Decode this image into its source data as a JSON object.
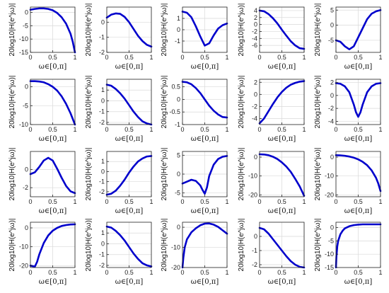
{
  "figure": {
    "line_color": "#0000cc",
    "grid_color": "#d9d9d9",
    "x_label": "ω∈[0,π]",
    "y_label": "20log10|H(e^jω)|"
  },
  "chart_data": [
    {
      "type": "line",
      "xlim": [
        0,
        1
      ],
      "ylim": [
        -15,
        2
      ],
      "yticks": [
        0,
        -5,
        -10,
        -15
      ],
      "xticks": [
        0,
        0.5,
        1
      ],
      "xticklabels": [
        "0",
        "0.5",
        "1"
      ],
      "grid": true,
      "x": [
        0,
        0.1,
        0.2,
        0.3,
        0.4,
        0.5,
        0.6,
        0.7,
        0.8,
        0.9,
        0.95,
        1
      ],
      "y": [
        1,
        1.3,
        1.5,
        1.5,
        1.3,
        0.8,
        -0.2,
        -1.8,
        -4.2,
        -8.0,
        -11.0,
        -15.0
      ]
    },
    {
      "type": "line",
      "xlim": [
        0,
        1
      ],
      "ylim": [
        -2,
        1
      ],
      "yticks": [
        0,
        -1,
        -2
      ],
      "xticks": [
        0,
        0.5,
        1
      ],
      "xticklabels": [
        "0",
        "0.5",
        "1"
      ],
      "grid": true,
      "x": [
        0,
        0.1,
        0.2,
        0.3,
        0.4,
        0.5,
        0.6,
        0.7,
        0.8,
        0.9,
        1
      ],
      "y": [
        0.3,
        0.5,
        0.58,
        0.55,
        0.35,
        0.0,
        -0.45,
        -0.9,
        -1.25,
        -1.5,
        -1.62
      ]
    },
    {
      "type": "line",
      "xlim": [
        0,
        1
      ],
      "ylim": [
        -2,
        2
      ],
      "yticks": [
        1,
        0,
        -1
      ],
      "xticks": [
        0,
        0.5,
        1
      ],
      "xticklabels": [
        "0",
        "0.5",
        "1"
      ],
      "grid": true,
      "x": [
        0,
        0.1,
        0.2,
        0.3,
        0.4,
        0.5,
        0.6,
        0.7,
        0.8,
        0.9,
        1
      ],
      "y": [
        1.6,
        1.5,
        1.1,
        0.3,
        -0.6,
        -1.4,
        -1.2,
        -0.5,
        0.1,
        0.4,
        0.55
      ]
    },
    {
      "type": "line",
      "xlim": [
        0,
        1
      ],
      "ylim": [
        -8,
        5
      ],
      "yticks": [
        4,
        2,
        0,
        -2,
        -4,
        -6
      ],
      "xticks": [
        0,
        0.5,
        1
      ],
      "xticklabels": [
        "0",
        "0.5",
        "1"
      ],
      "grid": true,
      "x": [
        0,
        0.1,
        0.2,
        0.3,
        0.4,
        0.5,
        0.6,
        0.7,
        0.8,
        0.9,
        1
      ],
      "y": [
        4,
        3.8,
        3,
        1.8,
        0.3,
        -1.5,
        -3.2,
        -4.8,
        -6.0,
        -6.8,
        -7.0
      ]
    },
    {
      "type": "line",
      "xlim": [
        0,
        1
      ],
      "ylim": [
        -9,
        6
      ],
      "yticks": [
        5,
        0,
        -5
      ],
      "xticks": [
        0,
        0.5,
        1
      ],
      "xticklabels": [
        "0",
        "0.5",
        "1"
      ],
      "grid": true,
      "x": [
        0,
        0.1,
        0.2,
        0.3,
        0.4,
        0.5,
        0.6,
        0.7,
        0.8,
        0.9,
        1
      ],
      "y": [
        -5,
        -5.5,
        -7,
        -8,
        -7,
        -4,
        -1,
        2,
        3.8,
        4.6,
        5
      ]
    },
    {
      "type": "line",
      "xlim": [
        0,
        1
      ],
      "ylim": [
        -10,
        2
      ],
      "yticks": [
        0,
        -5,
        -10
      ],
      "xticks": [
        0,
        0.5,
        1
      ],
      "xticklabels": [
        "0",
        "0.5",
        "1"
      ],
      "grid": true,
      "x": [
        0,
        0.1,
        0.2,
        0.3,
        0.4,
        0.5,
        0.6,
        0.7,
        0.8,
        0.9,
        0.95,
        1
      ],
      "y": [
        1.5,
        1.5,
        1.4,
        1.2,
        0.7,
        0,
        -1.0,
        -2.5,
        -4.5,
        -7.0,
        -8.5,
        -10
      ]
    },
    {
      "type": "line",
      "xlim": [
        0,
        1
      ],
      "ylim": [
        -2.2,
        2
      ],
      "yticks": [
        1,
        0,
        -1,
        -2
      ],
      "xticks": [
        0,
        0.5,
        1
      ],
      "xticklabels": [
        "0",
        "0.5",
        "1"
      ],
      "grid": true,
      "x": [
        0,
        0.1,
        0.2,
        0.3,
        0.4,
        0.5,
        0.6,
        0.7,
        0.8,
        0.9,
        1
      ],
      "y": [
        1.5,
        1.4,
        1.1,
        0.7,
        0.2,
        -0.4,
        -1.0,
        -1.5,
        -1.9,
        -2.1,
        -2.2
      ]
    },
    {
      "type": "line",
      "xlim": [
        0,
        1
      ],
      "ylim": [
        -1,
        0.8
      ],
      "yticks": [
        0.5,
        0,
        -0.5,
        -1
      ],
      "xticks": [
        0,
        0.5,
        1
      ],
      "xticklabels": [
        "0",
        "0.5",
        "1"
      ],
      "grid": true,
      "x": [
        0,
        0.1,
        0.2,
        0.3,
        0.4,
        0.5,
        0.6,
        0.7,
        0.8,
        0.9,
        1
      ],
      "y": [
        0.7,
        0.68,
        0.6,
        0.45,
        0.25,
        0.0,
        -0.25,
        -0.45,
        -0.6,
        -0.7,
        -0.72
      ]
    },
    {
      "type": "line",
      "xlim": [
        0,
        1
      ],
      "ylim": [
        -5,
        2.5
      ],
      "yticks": [
        2,
        0,
        -2,
        -4
      ],
      "xticks": [
        0,
        0.5,
        1
      ],
      "xticklabels": [
        "0",
        "0.5",
        "1"
      ],
      "grid": true,
      "x": [
        0,
        0.1,
        0.2,
        0.3,
        0.4,
        0.5,
        0.6,
        0.7,
        0.8,
        0.9,
        1
      ],
      "y": [
        -4.8,
        -4,
        -2.8,
        -1.6,
        -0.5,
        0.4,
        1.1,
        1.6,
        1.9,
        2.1,
        2.2
      ]
    },
    {
      "type": "line",
      "xlim": [
        0,
        1
      ],
      "ylim": [
        -4.5,
        2.5
      ],
      "yticks": [
        2,
        0,
        -2,
        -4
      ],
      "xticks": [
        0,
        0.5,
        1
      ],
      "xticklabels": [
        "0",
        "0.5",
        "1"
      ],
      "grid": true,
      "x": [
        0,
        0.1,
        0.2,
        0.3,
        0.4,
        0.45,
        0.5,
        0.55,
        0.6,
        0.7,
        0.8,
        0.9,
        1
      ],
      "y": [
        1.9,
        1.8,
        1.4,
        0.5,
        -1.4,
        -2.6,
        -3.3,
        -2.6,
        -1.4,
        0.5,
        1.4,
        1.8,
        1.9
      ]
    },
    {
      "type": "line",
      "xlim": [
        0,
        1
      ],
      "ylim": [
        -3,
        2
      ],
      "yticks": [
        0,
        -2
      ],
      "xticks": [
        0,
        0.5,
        1
      ],
      "xticklabels": [
        "0",
        "0.5",
        "1"
      ],
      "grid": true,
      "x": [
        0,
        0.1,
        0.2,
        0.3,
        0.4,
        0.5,
        0.6,
        0.7,
        0.8,
        0.9,
        1
      ],
      "y": [
        -0.5,
        -0.3,
        0.3,
        1.0,
        1.3,
        1.0,
        0.1,
        -0.9,
        -1.8,
        -2.4,
        -2.6
      ]
    },
    {
      "type": "line",
      "xlim": [
        0,
        1
      ],
      "ylim": [
        -2.5,
        2
      ],
      "yticks": [
        1,
        0,
        -1,
        -2
      ],
      "xticks": [
        0,
        0.5,
        1
      ],
      "xticklabels": [
        "0",
        "0.5",
        "1"
      ],
      "grid": true,
      "x": [
        0,
        0.1,
        0.2,
        0.3,
        0.4,
        0.5,
        0.6,
        0.7,
        0.8,
        0.9,
        1
      ],
      "y": [
        -2.3,
        -2.2,
        -1.9,
        -1.4,
        -0.8,
        -0.1,
        0.5,
        1.0,
        1.3,
        1.5,
        1.55
      ]
    },
    {
      "type": "line",
      "xlim": [
        0,
        1
      ],
      "ylim": [
        -6,
        6
      ],
      "yticks": [
        5,
        0,
        -5
      ],
      "xticks": [
        0,
        0.5,
        1
      ],
      "xticklabels": [
        "0",
        "0.5",
        "1"
      ],
      "grid": true,
      "x": [
        0,
        0.1,
        0.2,
        0.3,
        0.4,
        0.45,
        0.5,
        0.55,
        0.6,
        0.7,
        0.8,
        0.9,
        1
      ],
      "y": [
        -2.5,
        -2.0,
        -1.5,
        -1.8,
        -3.0,
        -4.2,
        -5.2,
        -3.5,
        -0.5,
        2.5,
        4.0,
        4.6,
        4.8
      ]
    },
    {
      "type": "line",
      "xlim": [
        0,
        1
      ],
      "ylim": [
        -21,
        3
      ],
      "yticks": [
        0,
        -10,
        -20
      ],
      "xticks": [
        0,
        0.5,
        1
      ],
      "xticklabels": [
        "0",
        "0.5",
        "1"
      ],
      "grid": true,
      "x": [
        0,
        0.1,
        0.2,
        0.3,
        0.4,
        0.5,
        0.6,
        0.7,
        0.8,
        0.9,
        0.95,
        1
      ],
      "y": [
        1.5,
        1.4,
        1.0,
        0.2,
        -1.0,
        -2.8,
        -5.0,
        -7.8,
        -11.5,
        -15.5,
        -18,
        -20.5
      ]
    },
    {
      "type": "line",
      "xlim": [
        0,
        1
      ],
      "ylim": [
        -21,
        3
      ],
      "yticks": [
        0,
        -10,
        -20
      ],
      "xticks": [
        0,
        0.5,
        1
      ],
      "xticklabels": [
        "0",
        "0.5",
        "1"
      ],
      "grid": true,
      "x": [
        0,
        0.1,
        0.2,
        0.3,
        0.4,
        0.5,
        0.6,
        0.7,
        0.8,
        0.9,
        0.95,
        1
      ],
      "y": [
        1.0,
        0.9,
        0.7,
        0.3,
        -0.3,
        -1.2,
        -2.5,
        -4.3,
        -7.0,
        -11,
        -14,
        -18
      ]
    },
    {
      "type": "line",
      "xlim": [
        0,
        1
      ],
      "ylim": [
        -21,
        3
      ],
      "yticks": [
        0,
        -10,
        -20
      ],
      "xticks": [
        0,
        0.5,
        1
      ],
      "xticklabels": [
        "0",
        "0.5",
        "1"
      ],
      "grid": true,
      "x": [
        0,
        0.1,
        0.15,
        0.2,
        0.3,
        0.4,
        0.5,
        0.6,
        0.7,
        0.8,
        0.9,
        1
      ],
      "y": [
        -20,
        -20.5,
        -18,
        -14,
        -8,
        -4,
        -1.5,
        0,
        1.0,
        1.5,
        1.8,
        1.9
      ]
    },
    {
      "type": "line",
      "xlim": [
        0,
        1
      ],
      "ylim": [
        -2.2,
        2
      ],
      "yticks": [
        1,
        0,
        -1,
        -2
      ],
      "xticks": [
        0,
        0.5,
        1
      ],
      "xticklabels": [
        "0",
        "0.5",
        "1"
      ],
      "grid": true,
      "x": [
        0,
        0.1,
        0.2,
        0.3,
        0.4,
        0.5,
        0.6,
        0.7,
        0.8,
        0.9,
        1
      ],
      "y": [
        1.6,
        1.5,
        1.2,
        0.8,
        0.3,
        -0.3,
        -0.9,
        -1.4,
        -1.8,
        -2.0,
        -2.1
      ]
    },
    {
      "type": "line",
      "xlim": [
        0,
        1
      ],
      "ylim": [
        -20,
        2.5
      ],
      "yticks": [
        0,
        -10,
        -20
      ],
      "xticks": [
        0,
        0.5,
        1
      ],
      "xticklabels": [
        "0",
        "0.5",
        "1"
      ],
      "grid": true,
      "x": [
        0,
        0.02,
        0.05,
        0.1,
        0.2,
        0.3,
        0.4,
        0.5,
        0.6,
        0.7,
        0.8,
        0.9,
        1
      ],
      "y": [
        -20,
        -15,
        -10,
        -6,
        -2.5,
        -0.5,
        1.0,
        1.8,
        1.9,
        1.3,
        0.2,
        -1.5,
        -3.2
      ]
    },
    {
      "type": "line",
      "xlim": [
        0,
        1
      ],
      "ylim": [
        -2.2,
        1
      ],
      "yticks": [
        0,
        -1,
        -2
      ],
      "xticks": [
        0,
        0.5,
        1
      ],
      "xticklabels": [
        "0",
        "0.5",
        "1"
      ],
      "grid": true,
      "x": [
        0,
        0.1,
        0.2,
        0.3,
        0.4,
        0.5,
        0.6,
        0.7,
        0.8,
        0.9,
        1
      ],
      "y": [
        0.6,
        0.5,
        0.2,
        -0.2,
        -0.6,
        -1.0,
        -1.4,
        -1.75,
        -2.0,
        -2.15,
        -2.2
      ]
    },
    {
      "type": "line",
      "xlim": [
        0,
        1
      ],
      "ylim": [
        -15,
        2
      ],
      "yticks": [
        0,
        -5,
        -10,
        -15
      ],
      "xticks": [
        0,
        0.5,
        1
      ],
      "xticklabels": [
        "0",
        "0.5",
        "1"
      ],
      "grid": true,
      "x": [
        0,
        0.01,
        0.03,
        0.05,
        0.1,
        0.15,
        0.2,
        0.3,
        0.4,
        0.5,
        0.6,
        0.7,
        0.8,
        0.9,
        1
      ],
      "y": [
        -15,
        -11,
        -7,
        -5,
        -2.5,
        -1.2,
        -0.3,
        0.5,
        0.9,
        1.1,
        1.2,
        1.2,
        1.2,
        1.2,
        1.2
      ]
    }
  ]
}
